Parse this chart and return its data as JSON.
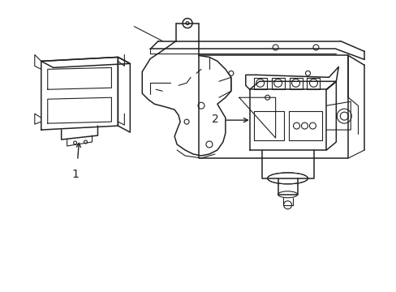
{
  "background_color": "#ffffff",
  "line_color": "#222222",
  "fig_width": 4.89,
  "fig_height": 3.6,
  "dpi": 100,
  "label1": "1",
  "label2": "2"
}
